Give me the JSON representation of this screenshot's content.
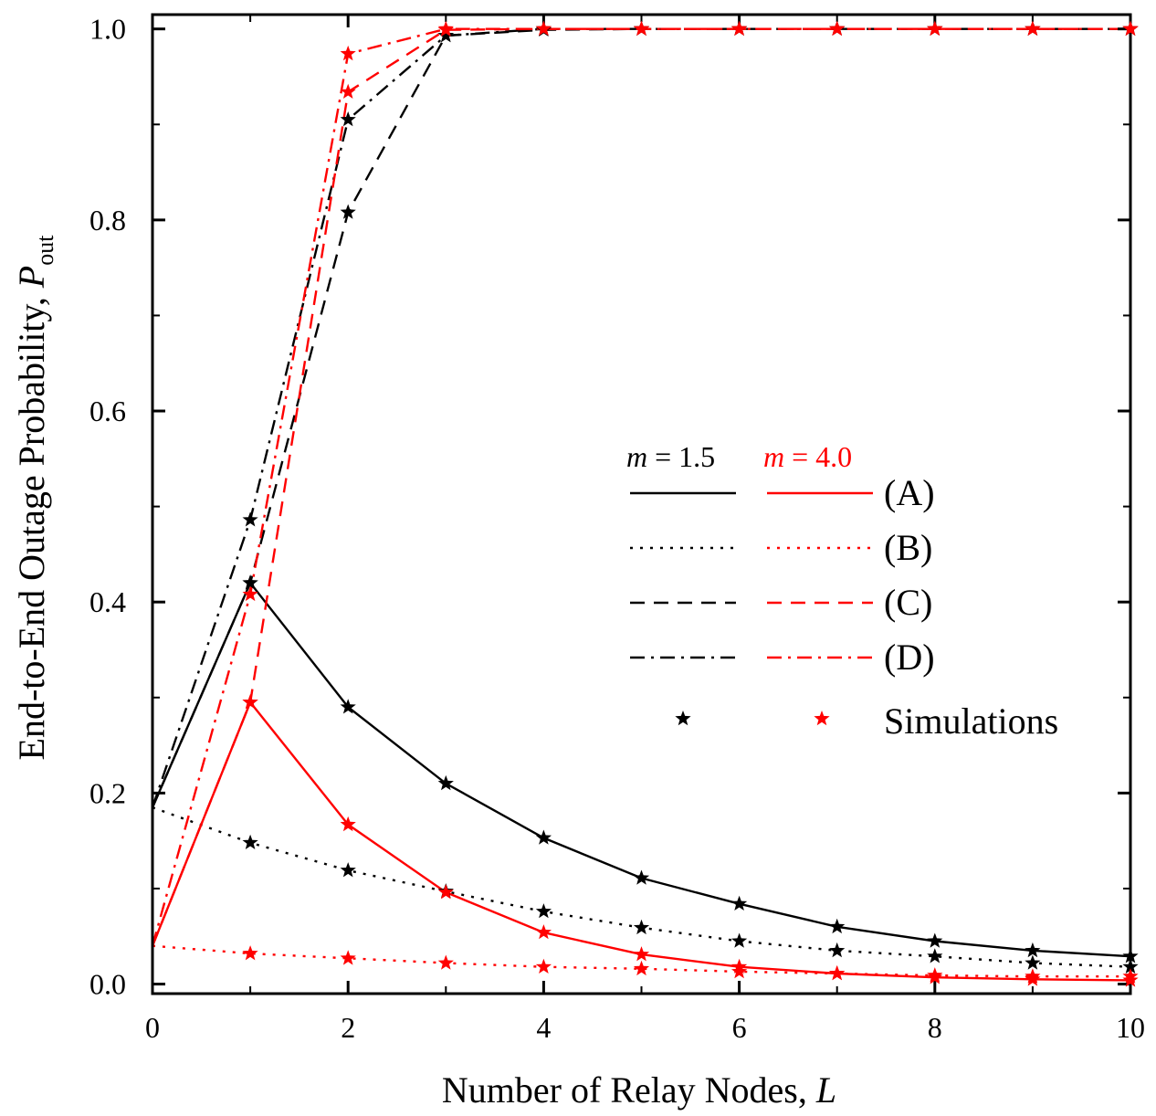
{
  "chart_data": {
    "type": "line",
    "title": "",
    "xlabel": {
      "prefix": "Number of Relay Nodes, ",
      "var": "L"
    },
    "ylabel": {
      "prefix": "End-to-End Outage Probability, ",
      "var": "P",
      "sub": "out"
    },
    "xlim": [
      0,
      10
    ],
    "ylim": [
      -0.01,
      1.015
    ],
    "xticks": [
      0,
      2,
      4,
      6,
      8,
      10
    ],
    "yticks": [
      0.0,
      0.2,
      0.4,
      0.6,
      0.8,
      1.0
    ],
    "ytick_labels": [
      "0.0",
      "0.2",
      "0.4",
      "0.6",
      "0.8",
      "1.0"
    ],
    "grid": false,
    "legend_position": "center-right",
    "colors": {
      "m15": "#000000",
      "m40": "#ff0000"
    },
    "legend": {
      "header_m15": {
        "var": "m",
        "rest": " = 1.5"
      },
      "header_m40": {
        "var": "m",
        "rest": " = 4.0"
      },
      "rows": [
        "(A)",
        "(B)",
        "(C)",
        "(D)",
        "Simulations"
      ]
    },
    "series": [
      {
        "case": "A",
        "m": 1.5,
        "style": "solid",
        "x": [
          0,
          1,
          2,
          3,
          4,
          5,
          6,
          7,
          8,
          9,
          10
        ],
        "y": [
          0.185,
          0.42,
          0.29,
          0.21,
          0.153,
          0.111,
          0.084,
          0.06,
          0.045,
          0.035,
          0.029
        ]
      },
      {
        "case": "B",
        "m": 1.5,
        "style": "dotted",
        "x": [
          0,
          1,
          2,
          3,
          4,
          5,
          6,
          7,
          8,
          9,
          10
        ],
        "y": [
          0.185,
          0.148,
          0.119,
          0.097,
          0.076,
          0.059,
          0.045,
          0.035,
          0.029,
          0.022,
          0.018
        ]
      },
      {
        "case": "C",
        "m": 1.5,
        "style": "dashed",
        "x": [
          0,
          1,
          2,
          3,
          4,
          5,
          6,
          7,
          8,
          9,
          10
        ],
        "y": [
          0.185,
          0.42,
          0.808,
          0.993,
          0.999,
          1.0,
          1.0,
          1.0,
          1.0,
          1.0,
          1.0
        ]
      },
      {
        "case": "D",
        "m": 1.5,
        "style": "dashdot",
        "x": [
          0,
          1,
          2,
          3,
          4,
          5,
          6,
          7,
          8,
          9,
          10
        ],
        "y": [
          0.185,
          0.486,
          0.905,
          0.993,
          1.0,
          1.0,
          1.0,
          1.0,
          1.0,
          1.0,
          1.0
        ]
      },
      {
        "case": "A",
        "m": 4.0,
        "style": "solid",
        "x": [
          0,
          1,
          2,
          3,
          4,
          5,
          6,
          7,
          8,
          9,
          10
        ],
        "y": [
          0.04,
          0.295,
          0.167,
          0.096,
          0.054,
          0.031,
          0.018,
          0.011,
          0.007,
          0.005,
          0.004
        ]
      },
      {
        "case": "B",
        "m": 4.0,
        "style": "dotted",
        "x": [
          0,
          1,
          2,
          3,
          4,
          5,
          6,
          7,
          8,
          9,
          10
        ],
        "y": [
          0.04,
          0.032,
          0.027,
          0.022,
          0.018,
          0.016,
          0.013,
          0.011,
          0.009,
          0.008,
          0.008
        ]
      },
      {
        "case": "C",
        "m": 4.0,
        "style": "dashed",
        "x": [
          0,
          1,
          2,
          3,
          4,
          5,
          6,
          7,
          8,
          9,
          10
        ],
        "y": [
          0.04,
          0.295,
          0.934,
          0.999,
          1.0,
          1.0,
          1.0,
          1.0,
          1.0,
          1.0,
          1.0
        ]
      },
      {
        "case": "D",
        "m": 4.0,
        "style": "dashdot",
        "x": [
          0,
          1,
          2,
          3,
          4,
          5,
          6,
          7,
          8,
          9,
          10
        ],
        "y": [
          0.04,
          0.408,
          0.974,
          1.0,
          1.0,
          1.0,
          1.0,
          1.0,
          1.0,
          1.0,
          1.0
        ]
      }
    ]
  }
}
